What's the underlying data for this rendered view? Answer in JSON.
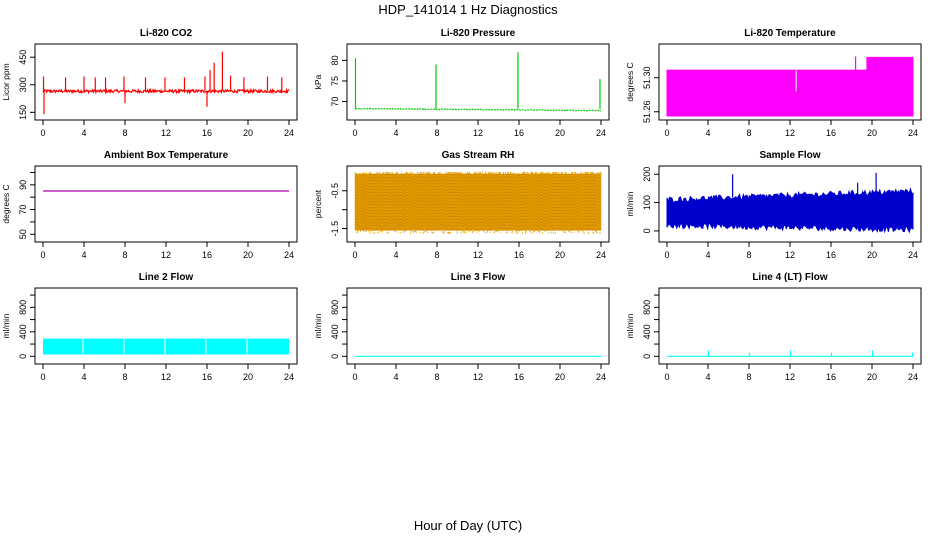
{
  "figure": {
    "title": "HDP_141014  1 Hz Diagnostics",
    "xlabel": "Hour of Day (UTC)"
  },
  "chart_data": [
    {
      "type": "line",
      "title": "Li-820 CO2",
      "ylabel": "Licor ppm",
      "color": "#ff0000",
      "xlim": [
        0,
        24
      ],
      "ylim": [
        130,
        500
      ],
      "xticks": [
        0,
        4,
        8,
        12,
        16,
        20,
        24
      ],
      "yticks": [
        150,
        300,
        450
      ],
      "baseline": 265,
      "noise": 8,
      "spikes": [
        [
          0.05,
          345
        ],
        [
          0.1,
          140
        ],
        [
          2.2,
          340
        ],
        [
          4.0,
          345
        ],
        [
          5.1,
          340
        ],
        [
          6.1,
          340
        ],
        [
          7.9,
          345
        ],
        [
          8.0,
          200
        ],
        [
          10.0,
          340
        ],
        [
          11.9,
          340
        ],
        [
          13.8,
          340
        ],
        [
          15.8,
          345
        ],
        [
          16.0,
          180
        ],
        [
          16.3,
          380
        ],
        [
          16.7,
          420
        ],
        [
          17.5,
          480
        ],
        [
          18.3,
          350
        ],
        [
          19.6,
          340
        ],
        [
          21.9,
          345
        ],
        [
          23.3,
          340
        ]
      ]
    },
    {
      "type": "line",
      "title": "Li-820 Pressure",
      "ylabel": "kPa",
      "color": "#00cc00",
      "xlim": [
        0,
        24
      ],
      "ylim": [
        66.5,
        83
      ],
      "xticks": [
        0,
        4,
        8,
        12,
        16,
        20,
        24
      ],
      "yticks": [
        70,
        75,
        80
      ],
      "segments": [
        [
          0,
          68.3
        ],
        [
          24,
          67.8
        ]
      ],
      "noise": 0.1,
      "spikes": [
        [
          0.05,
          80.5
        ],
        [
          7.9,
          79.0
        ],
        [
          15.9,
          82.0
        ],
        [
          23.9,
          75.5
        ]
      ]
    },
    {
      "type": "area",
      "title": "Li-820 Temperature",
      "ylabel": "degrees C",
      "color": "#ff00ff",
      "xlim": [
        0,
        24
      ],
      "ylim": [
        51.255,
        51.335
      ],
      "xticks": [
        0,
        4,
        8,
        12,
        16,
        20,
        24
      ],
      "yticks": [
        51.26,
        51.3
      ],
      "ytick_labels": [
        "51.26",
        "51.30"
      ],
      "steps": [
        [
          0,
          51.309
        ],
        [
          19.5,
          51.324
        ],
        [
          24,
          51.324
        ]
      ],
      "notches": [
        [
          12.6,
          51.284
        ],
        [
          18.4,
          51.325
        ]
      ]
    },
    {
      "type": "line",
      "title": "Ambient Box Temperature",
      "ylabel": "degrees C",
      "color": "#b000b0",
      "xlim": [
        0,
        24
      ],
      "ylim": [
        47,
        102
      ],
      "xticks": [
        0,
        4,
        8,
        12,
        16,
        20,
        24
      ],
      "yticks": [
        50,
        70,
        90
      ],
      "yminorticks": [
        60,
        80,
        100
      ],
      "ytick_labels": [
        "50",
        "70",
        "90"
      ],
      "ytick_top": "100",
      "constant": 85
    },
    {
      "type": "line",
      "title": "Gas Stream RH",
      "ylabel": "percent",
      "color": "#e8a000",
      "xlim": [
        0,
        24
      ],
      "ylim": [
        -1.75,
        0.05
      ],
      "xticks": [
        0,
        4,
        8,
        12,
        16,
        20,
        24
      ],
      "yticks": [
        -1.5,
        -1.0,
        -0.5
      ],
      "ytick_labels": [
        "-1.5",
        "",
        "-0.5"
      ],
      "band": [
        -1.55,
        -0.05
      ],
      "fill": "#cc8800"
    },
    {
      "type": "line",
      "title": "Sample Flow",
      "ylabel": "ml/min",
      "color": "#0000cc",
      "xlim": [
        0,
        24
      ],
      "ylim": [
        -25,
        215
      ],
      "xticks": [
        0,
        4,
        8,
        12,
        16,
        20,
        24
      ],
      "yticks": [
        0,
        100,
        200
      ],
      "band_start": [
        20,
        110
      ],
      "band_end": [
        0,
        135
      ],
      "spikes": [
        [
          6.4,
          200
        ],
        [
          18.6,
          170
        ],
        [
          20.4,
          205
        ]
      ]
    },
    {
      "type": "area",
      "title": "Line 2 Flow",
      "ylabel": "ml/min",
      "color": "#00ffff",
      "xlim": [
        0,
        24
      ],
      "ylim": [
        -60,
        1050
      ],
      "xticks": [
        0,
        4,
        8,
        12,
        16,
        20,
        24
      ],
      "yticks": [
        0,
        200,
        400,
        600,
        800,
        1000
      ],
      "ytick_labels": [
        "0",
        "",
        "400",
        "",
        "800",
        ""
      ],
      "band": [
        30,
        290
      ],
      "gaps": [
        3.9,
        7.9,
        11.9,
        15.9,
        19.9
      ]
    },
    {
      "type": "line",
      "title": "Line 3 Flow",
      "ylabel": "ml/min",
      "color": "#00ffff",
      "xlim": [
        0,
        24
      ],
      "ylim": [
        -60,
        1050
      ],
      "xticks": [
        0,
        4,
        8,
        12,
        16,
        20,
        24
      ],
      "yticks": [
        0,
        200,
        400,
        600,
        800,
        1000
      ],
      "ytick_labels": [
        "0",
        "",
        "400",
        "",
        "800",
        ""
      ],
      "constant": 0
    },
    {
      "type": "line",
      "title": "Line 4 (LT) Flow",
      "ylabel": "ml/min",
      "color": "#00ffff",
      "xlim": [
        0,
        24
      ],
      "ylim": [
        -60,
        1050
      ],
      "xticks": [
        0,
        4,
        8,
        12,
        16,
        20,
        24
      ],
      "yticks": [
        0,
        200,
        400,
        600,
        800,
        1000
      ],
      "ytick_labels": [
        "0",
        "",
        "400",
        "",
        "800",
        ""
      ],
      "constant": 0,
      "spikes": [
        [
          4.05,
          100
        ],
        [
          8.05,
          60
        ],
        [
          12.05,
          100
        ],
        [
          16.05,
          60
        ],
        [
          20.05,
          100
        ],
        [
          23.95,
          60
        ]
      ]
    }
  ]
}
